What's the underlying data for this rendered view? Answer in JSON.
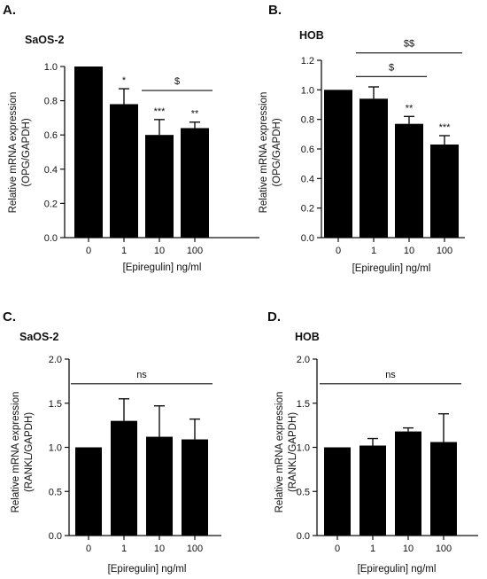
{
  "panels": [
    {
      "letter": "A.",
      "cell_title": "SaOS-2",
      "ylabel_line1": "Relative mRNA expression",
      "ylabel_line2": "(OPG/GAPDH)",
      "xlabel": "[Epiregulin]  ng/ml"
    },
    {
      "letter": "B.",
      "cell_title": "HOB",
      "ylabel_line1": "Relative mRNA expression",
      "ylabel_line2": "(OPG/GAPDH)",
      "xlabel": "[Epiregulin]  ng/ml"
    },
    {
      "letter": "C.",
      "cell_title": "SaOS-2",
      "ylabel_line1": "Relative mRNA expression",
      "ylabel_line2": "(RANKL/GAPDH)",
      "xlabel": "[Epiregulin]  ng/ml"
    },
    {
      "letter": "D.",
      "cell_title": "HOB",
      "ylabel_line1": "Relative mRNA expression",
      "ylabel_line2": "(RANKL/GAPDH)",
      "xlabel": "[Epiregulin]  ng/ml"
    }
  ],
  "chart_data": [
    {
      "type": "bar",
      "panel": "A.",
      "title": "SaOS-2",
      "xlabel": "[Epiregulin]  ng/ml",
      "ylabel": "Relative mRNA expression (OPG/GAPDH)",
      "categories": [
        "0",
        "1",
        "10",
        "100"
      ],
      "values": [
        1.0,
        0.78,
        0.6,
        0.64
      ],
      "errors": [
        0,
        0.09,
        0.09,
        0.035
      ],
      "ylim": [
        0,
        1.0
      ],
      "yticks": [
        0.0,
        0.2,
        0.4,
        0.6,
        0.8,
        1.0
      ],
      "ytick_labels": [
        "0.0",
        "0.2",
        "0.4",
        "0.6",
        "0.8",
        "1.0"
      ],
      "significance_marks": [
        "",
        "*",
        "***",
        "**"
      ],
      "brackets": [
        {
          "from": "10",
          "to": "100",
          "label": "$",
          "y": 0.86
        }
      ],
      "grid": false
    },
    {
      "type": "bar",
      "panel": "B.",
      "title": "HOB",
      "xlabel": "[Epiregulin]  ng/ml",
      "ylabel": "Relative mRNA expression (OPG/GAPDH)",
      "categories": [
        "0",
        "1",
        "10",
        "100"
      ],
      "values": [
        1.0,
        0.94,
        0.77,
        0.63
      ],
      "errors": [
        0,
        0.08,
        0.05,
        0.06
      ],
      "ylim": [
        0,
        1.2
      ],
      "yticks": [
        0.0,
        0.2,
        0.4,
        0.6,
        0.8,
        1.0,
        1.2
      ],
      "ytick_labels": [
        "0.0",
        "0.2",
        "0.4",
        "0.6",
        "0.8",
        "1.0",
        "1.2"
      ],
      "significance_marks": [
        "",
        "",
        "**",
        "***"
      ],
      "brackets": [
        {
          "from": "1",
          "to": "10",
          "label": "$",
          "y": 1.09
        },
        {
          "from": "1",
          "to": "100",
          "label": "$$",
          "y": 1.25
        }
      ],
      "grid": false
    },
    {
      "type": "bar",
      "panel": "C.",
      "title": "SaOS-2",
      "xlabel": "[Epiregulin]  ng/ml",
      "ylabel": "Relative mRNA expression (RANKL/GAPDH)",
      "categories": [
        "0",
        "1",
        "10",
        "100"
      ],
      "values": [
        1.0,
        1.3,
        1.12,
        1.09
      ],
      "errors": [
        0,
        0.25,
        0.35,
        0.23
      ],
      "ylim": [
        0,
        2.0
      ],
      "yticks": [
        0.0,
        0.5,
        1.0,
        1.5,
        2.0
      ],
      "ytick_labels": [
        "0.0",
        "0.5",
        "1.0",
        "1.5",
        "2.0"
      ],
      "significance_marks": [
        "",
        "",
        "",
        ""
      ],
      "brackets": [
        {
          "from": "0",
          "to": "100",
          "label": "ns",
          "y": 1.72
        }
      ],
      "grid": false
    },
    {
      "type": "bar",
      "panel": "D.",
      "title": "HOB",
      "xlabel": "[Epiregulin]  ng/ml",
      "ylabel": "Relative mRNA expression (RANKL/GAPDH)",
      "categories": [
        "0",
        "1",
        "10",
        "100"
      ],
      "values": [
        1.0,
        1.02,
        1.18,
        1.06
      ],
      "errors": [
        0,
        0.08,
        0.04,
        0.32
      ],
      "ylim": [
        0,
        2.0
      ],
      "yticks": [
        0.0,
        0.5,
        1.0,
        1.5,
        2.0
      ],
      "ytick_labels": [
        "0.0",
        "0.5",
        "1.0",
        "1.5",
        "2.0"
      ],
      "significance_marks": [
        "",
        "",
        "",
        ""
      ],
      "brackets": [
        {
          "from": "0",
          "to": "100",
          "label": "ns",
          "y": 1.72
        }
      ],
      "grid": false
    }
  ]
}
